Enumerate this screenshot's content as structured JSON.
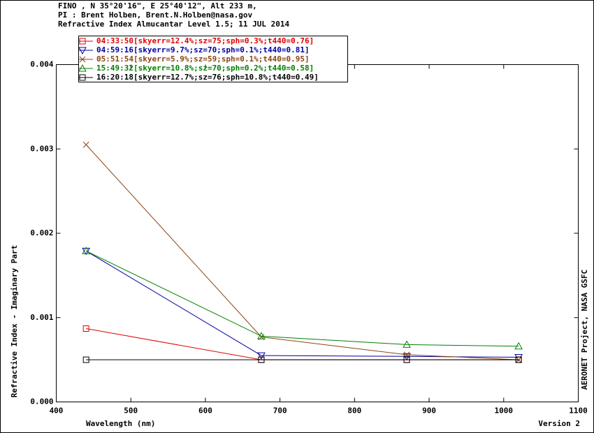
{
  "chart_data": {
    "type": "line",
    "title": [
      "FINO , N 35°20'16\", E 25°40'12\", Alt 233 m,",
      "PI : Brent Holben, Brent.N.Holben@nasa.gov",
      "Refractive Index Almucantar Level 1.5; 11 JUL 2014"
    ],
    "x_label": "Wavelength (nm)",
    "y_label": "Refractive Index - Imaginary Part",
    "right_note": "AERONET Project, NASA GSFC",
    "version_note": "Version 2",
    "x": [
      440,
      675,
      870,
      1020
    ],
    "xlim": [
      400,
      1100
    ],
    "xticks": [
      400,
      500,
      600,
      700,
      800,
      900,
      1000,
      1100
    ],
    "ylim": [
      0,
      0.004
    ],
    "yticks": [
      {
        "value": 0,
        "label": "0.000"
      },
      {
        "value": 0.001,
        "label": "0.001"
      },
      {
        "value": 0.002,
        "label": "0.002"
      },
      {
        "value": 0.003,
        "label": "0.003"
      },
      {
        "value": 0.004,
        "label": "0.004"
      }
    ],
    "legend": "top-left",
    "series": [
      {
        "name": "04:33:50[skyerr=12.4%;sz=75;sph=0.3%;t440=0.76]",
        "color": "#e00000",
        "marker": "square",
        "values": [
          0.00087,
          0.0005,
          0.0005,
          0.0005
        ]
      },
      {
        "name": "04:59:16[skyerr=9.7%;sz=70;sph=0.1%;t440=0.81]",
        "color": "#0000a0",
        "marker": "triangle-down",
        "values": [
          0.00179,
          0.00055,
          0.00054,
          0.00053
        ]
      },
      {
        "name": "05:51:54[skyerr=5.9%;sz=59;sph=0.1%;t440=0.95]",
        "color": "#8b4513",
        "marker": "x",
        "values": [
          0.00305,
          0.00077,
          0.00056,
          0.0005
        ]
      },
      {
        "name": "15:49:32[skyerr=10.8%;sz=70;sph=0.2%;t440=0.58]",
        "color": "#008000",
        "marker": "triangle-up",
        "values": [
          0.00179,
          0.00078,
          0.00068,
          0.00066
        ]
      },
      {
        "name": "16:20:18[skyerr=12.7%;sz=76;sph=10.8%;t440=0.49]",
        "color": "#000000",
        "marker": "square",
        "values": [
          0.0005,
          0.0005,
          0.0005,
          0.0005
        ]
      }
    ]
  }
}
